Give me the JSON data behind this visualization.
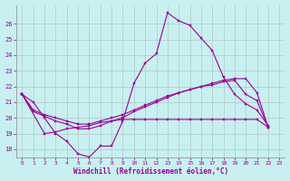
{
  "xlabel": "Windchill (Refroidissement éolien,°C)",
  "background_color": "#c8f0f0",
  "line_color": "#990099",
  "grid_color": "#b0c8c8",
  "xlim": [
    -0.5,
    23.5
  ],
  "ylim": [
    17.5,
    27.2
  ],
  "xticks": [
    0,
    1,
    2,
    3,
    4,
    5,
    6,
    7,
    8,
    9,
    10,
    11,
    12,
    13,
    14,
    15,
    16,
    17,
    18,
    19,
    20,
    21,
    22,
    23
  ],
  "yticks": [
    18,
    19,
    20,
    21,
    22,
    23,
    24,
    25,
    26
  ],
  "series": [
    {
      "x": [
        0,
        1,
        2,
        3,
        4,
        5,
        6,
        7,
        8,
        9,
        10,
        11,
        12,
        13,
        14,
        15,
        16,
        17,
        18,
        19,
        20,
        21,
        22
      ],
      "y": [
        21.5,
        21.0,
        20.0,
        19.0,
        18.5,
        17.7,
        17.5,
        18.2,
        18.2,
        19.8,
        22.2,
        23.5,
        24.1,
        26.7,
        26.2,
        25.9,
        25.1,
        24.3,
        22.6,
        21.5,
        20.9,
        20.5,
        19.5
      ]
    },
    {
      "x": [
        0,
        1,
        2,
        3,
        4,
        5,
        6,
        7,
        8,
        9,
        10,
        11,
        12,
        13,
        14,
        15,
        16,
        17,
        18,
        19,
        20,
        21,
        22
      ],
      "y": [
        21.5,
        20.4,
        20.1,
        19.8,
        19.6,
        19.3,
        19.3,
        19.5,
        19.8,
        20.0,
        20.4,
        20.7,
        21.0,
        21.3,
        21.6,
        21.8,
        22.0,
        22.2,
        22.4,
        22.5,
        22.5,
        21.6,
        19.4
      ]
    },
    {
      "x": [
        0,
        1,
        2,
        3,
        4,
        5,
        6,
        7,
        8,
        9,
        10,
        11,
        12,
        13,
        14,
        15,
        16,
        17,
        18,
        19,
        20,
        21,
        22
      ],
      "y": [
        21.5,
        20.5,
        20.2,
        20.0,
        19.8,
        19.6,
        19.6,
        19.8,
        20.0,
        20.2,
        20.5,
        20.8,
        21.1,
        21.4,
        21.6,
        21.8,
        22.0,
        22.1,
        22.3,
        22.4,
        21.5,
        21.1,
        19.4
      ]
    },
    {
      "x": [
        0,
        2,
        3,
        4,
        5,
        6,
        7,
        8,
        9,
        10,
        11,
        12,
        13,
        14,
        15,
        16,
        17,
        18,
        19,
        20,
        21,
        22
      ],
      "y": [
        21.5,
        19.0,
        19.1,
        19.3,
        19.4,
        19.5,
        19.7,
        19.8,
        19.9,
        19.9,
        19.9,
        19.9,
        19.9,
        19.9,
        19.9,
        19.9,
        19.9,
        19.9,
        19.9,
        19.9,
        19.9,
        19.4
      ]
    }
  ]
}
